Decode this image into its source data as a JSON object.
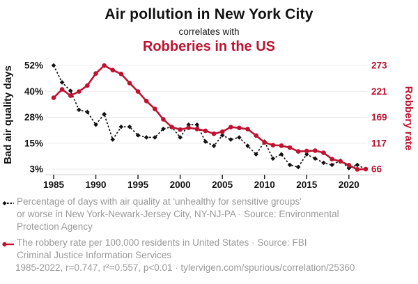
{
  "header": {
    "title": "Air pollution in New York City",
    "subtitle": "correlates with",
    "title2": "Robberies in the US"
  },
  "colors": {
    "accent_red": "#be1330",
    "series_black": "#111111",
    "muted_gray": "#999999",
    "gridline": "#ececec",
    "axis_line": "#d2d2d2",
    "tick": "#222222"
  },
  "chart_data": {
    "type": "line",
    "title": "Air pollution in New York City correlates with Robberies in the US",
    "x": [
      1985,
      1986,
      1987,
      1988,
      1989,
      1990,
      1991,
      1992,
      1993,
      1994,
      1995,
      1996,
      1997,
      1998,
      1999,
      2000,
      2001,
      2002,
      2003,
      2004,
      2005,
      2006,
      2007,
      2008,
      2009,
      2010,
      2011,
      2012,
      2013,
      2014,
      2015,
      2016,
      2017,
      2018,
      2019,
      2020,
      2021,
      2022
    ],
    "series": [
      {
        "id": "air-quality-series",
        "name": "Percentage of days with air quality at 'unhealthy for sensitive groups' or worse in New York-Newark-Jersey City, NY-NJ-PA",
        "axis": "left",
        "color": "#111111",
        "line": "dashed",
        "marker": "diamond",
        "values": [
          52,
          44,
          40,
          31,
          30,
          24,
          29,
          17,
          23,
          23,
          19,
          18,
          18,
          22,
          23,
          18,
          24,
          24,
          16,
          14,
          19,
          17,
          18,
          14,
          10,
          16,
          8,
          10,
          5,
          4,
          10,
          8,
          6,
          5,
          7,
          3.5,
          5,
          3
        ]
      },
      {
        "id": "robbery-rate-series",
        "name": "The robbery rate per 100,000 residents in United States",
        "axis": "right",
        "color": "#be1330",
        "line": "solid",
        "marker": "circle",
        "values": [
          208.5,
          225.1,
          212.7,
          220.9,
          233.0,
          257.0,
          272.7,
          263.7,
          256.0,
          237.8,
          220.9,
          201.9,
          186.2,
          165.5,
          150.1,
          145.0,
          148.5,
          146.1,
          142.5,
          136.7,
          140.8,
          150.0,
          148.3,
          145.9,
          133.1,
          119.3,
          113.9,
          112.9,
          109.0,
          101.3,
          102.2,
          102.9,
          98.6,
          86.1,
          81.6,
          73.9,
          65.5,
          66.1
        ]
      }
    ],
    "left_axis": {
      "label": "Bad air quality days",
      "ticks": [
        "52%",
        "40%",
        "28%",
        "15%",
        "3%"
      ],
      "range": [
        3,
        52
      ]
    },
    "right_axis": {
      "label": "Robbery rate",
      "ticks": [
        "273",
        "221",
        "169",
        "117",
        "66"
      ],
      "range": [
        66,
        273
      ]
    },
    "x_axis": {
      "ticks": [
        1985,
        1990,
        1995,
        2000,
        2005,
        2010,
        2015,
        2020
      ],
      "range": [
        1985,
        2022
      ]
    },
    "grid": "horizontal-only",
    "legend_position": "bottom"
  },
  "legend": {
    "row1": {
      "line1": "Percentage of days with air quality at 'unhealthy for sensitive groups'",
      "line2": "or worse in New York-Newark-Jersey City, NY-NJ-PA · Source: Environmental",
      "line3": "Protection Agency"
    },
    "row2": {
      "line1": "The robbery rate per 100,000 residents in United States · Source: FBI",
      "line2": "Criminal Justice Information Services"
    }
  },
  "footer": {
    "text": "1985-2022, r=0.747, r²=0.557, p<0.01 · tylervigen.com/spurious/correlation/25360"
  }
}
